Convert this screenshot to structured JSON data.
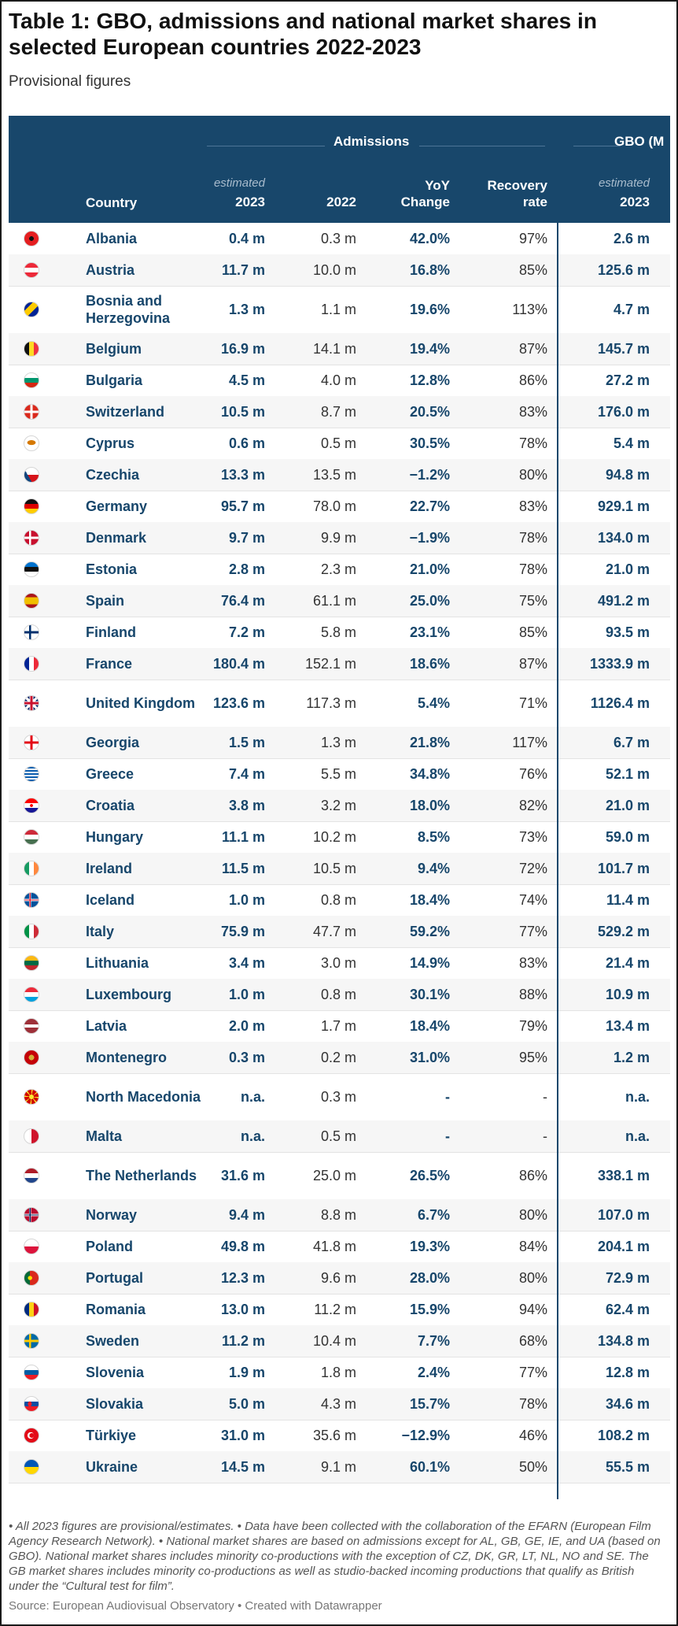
{
  "title": "Table 1: GBO, admissions and national market shares in selected European countries 2022-2023",
  "subtitle": "Provisional figures",
  "headers": {
    "group_admissions": "Admissions",
    "group_gbo": "GBO (M",
    "country": "Country",
    "estimated": "estimated",
    "col_2023": "2023",
    "col_2022": "2022",
    "yoy_line1": "YoY",
    "yoy_line2": "Change",
    "rec_line1": "Recovery",
    "rec_line2": "rate",
    "gbo_estimated": "estimated",
    "gbo_2023": "2023"
  },
  "chart_data": {
    "type": "table",
    "columns": [
      "Country",
      "Admissions estimated 2023",
      "Admissions 2022",
      "YoY Change",
      "Recovery rate",
      "GBO estimated 2023"
    ],
    "rows": [
      {
        "country": "Albania",
        "flag": "albania-flag",
        "adm2023": "0.4 m",
        "adm2022": "0.3 m",
        "yoy": "42.0%",
        "recovery": "97%",
        "gbo2023": "2.6 m"
      },
      {
        "country": "Austria",
        "flag": "austria-flag",
        "adm2023": "11.7 m",
        "adm2022": "10.0 m",
        "yoy": "16.8%",
        "recovery": "85%",
        "gbo2023": "125.6 m"
      },
      {
        "country": "Bosnia and Herzegovina",
        "flag": "bosnia-flag",
        "adm2023": "1.3 m",
        "adm2022": "1.1 m",
        "yoy": "19.6%",
        "recovery": "113%",
        "gbo2023": "4.7 m"
      },
      {
        "country": "Belgium",
        "flag": "belgium-flag",
        "adm2023": "16.9 m",
        "adm2022": "14.1 m",
        "yoy": "19.4%",
        "recovery": "87%",
        "gbo2023": "145.7 m"
      },
      {
        "country": "Bulgaria",
        "flag": "bulgaria-flag",
        "adm2023": "4.5 m",
        "adm2022": "4.0 m",
        "yoy": "12.8%",
        "recovery": "86%",
        "gbo2023": "27.2 m"
      },
      {
        "country": "Switzerland",
        "flag": "switzerland-flag",
        "adm2023": "10.5 m",
        "adm2022": "8.7 m",
        "yoy": "20.5%",
        "recovery": "83%",
        "gbo2023": "176.0 m"
      },
      {
        "country": "Cyprus",
        "flag": "cyprus-flag",
        "adm2023": "0.6 m",
        "adm2022": "0.5 m",
        "yoy": "30.5%",
        "recovery": "78%",
        "gbo2023": "5.4 m"
      },
      {
        "country": "Czechia",
        "flag": "czechia-flag",
        "adm2023": "13.3 m",
        "adm2022": "13.5 m",
        "yoy": "−1.2%",
        "recovery": "80%",
        "gbo2023": "94.8 m"
      },
      {
        "country": "Germany",
        "flag": "germany-flag",
        "adm2023": "95.7 m",
        "adm2022": "78.0 m",
        "yoy": "22.7%",
        "recovery": "83%",
        "gbo2023": "929.1 m"
      },
      {
        "country": "Denmark",
        "flag": "denmark-flag",
        "adm2023": "9.7 m",
        "adm2022": "9.9 m",
        "yoy": "−1.9%",
        "recovery": "78%",
        "gbo2023": "134.0 m"
      },
      {
        "country": "Estonia",
        "flag": "estonia-flag",
        "adm2023": "2.8 m",
        "adm2022": "2.3 m",
        "yoy": "21.0%",
        "recovery": "78%",
        "gbo2023": "21.0 m"
      },
      {
        "country": "Spain",
        "flag": "spain-flag",
        "adm2023": "76.4 m",
        "adm2022": "61.1 m",
        "yoy": "25.0%",
        "recovery": "75%",
        "gbo2023": "491.2 m"
      },
      {
        "country": "Finland",
        "flag": "finland-flag",
        "adm2023": "7.2 m",
        "adm2022": "5.8 m",
        "yoy": "23.1%",
        "recovery": "85%",
        "gbo2023": "93.5 m"
      },
      {
        "country": "France",
        "flag": "france-flag",
        "adm2023": "180.4 m",
        "adm2022": "152.1 m",
        "yoy": "18.6%",
        "recovery": "87%",
        "gbo2023": "1333.9 m"
      },
      {
        "country": "United Kingdom",
        "flag": "uk-flag",
        "adm2023": "123.6 m",
        "adm2022": "117.3 m",
        "yoy": "5.4%",
        "recovery": "71%",
        "gbo2023": "1126.4 m"
      },
      {
        "country": "Georgia",
        "flag": "georgia-flag",
        "adm2023": "1.5 m",
        "adm2022": "1.3 m",
        "yoy": "21.8%",
        "recovery": "117%",
        "gbo2023": "6.7 m"
      },
      {
        "country": "Greece",
        "flag": "greece-flag",
        "adm2023": "7.4 m",
        "adm2022": "5.5 m",
        "yoy": "34.8%",
        "recovery": "76%",
        "gbo2023": "52.1 m"
      },
      {
        "country": "Croatia",
        "flag": "croatia-flag",
        "adm2023": "3.8 m",
        "adm2022": "3.2 m",
        "yoy": "18.0%",
        "recovery": "82%",
        "gbo2023": "21.0 m"
      },
      {
        "country": "Hungary",
        "flag": "hungary-flag",
        "adm2023": "11.1 m",
        "adm2022": "10.2 m",
        "yoy": "8.5%",
        "recovery": "73%",
        "gbo2023": "59.0 m"
      },
      {
        "country": "Ireland",
        "flag": "ireland-flag",
        "adm2023": "11.5 m",
        "adm2022": "10.5 m",
        "yoy": "9.4%",
        "recovery": "72%",
        "gbo2023": "101.7 m"
      },
      {
        "country": "Iceland",
        "flag": "iceland-flag",
        "adm2023": "1.0 m",
        "adm2022": "0.8 m",
        "yoy": "18.4%",
        "recovery": "74%",
        "gbo2023": "11.4 m"
      },
      {
        "country": "Italy",
        "flag": "italy-flag",
        "adm2023": "75.9 m",
        "adm2022": "47.7 m",
        "yoy": "59.2%",
        "recovery": "77%",
        "gbo2023": "529.2 m"
      },
      {
        "country": "Lithuania",
        "flag": "lithuania-flag",
        "adm2023": "3.4 m",
        "adm2022": "3.0 m",
        "yoy": "14.9%",
        "recovery": "83%",
        "gbo2023": "21.4 m"
      },
      {
        "country": "Luxembourg",
        "flag": "luxembourg-flag",
        "adm2023": "1.0 m",
        "adm2022": "0.8 m",
        "yoy": "30.1%",
        "recovery": "88%",
        "gbo2023": "10.9 m"
      },
      {
        "country": "Latvia",
        "flag": "latvia-flag",
        "adm2023": "2.0 m",
        "adm2022": "1.7 m",
        "yoy": "18.4%",
        "recovery": "79%",
        "gbo2023": "13.4 m"
      },
      {
        "country": "Montenegro",
        "flag": "montenegro-flag",
        "adm2023": "0.3 m",
        "adm2022": "0.2 m",
        "yoy": "31.0%",
        "recovery": "95%",
        "gbo2023": "1.2 m"
      },
      {
        "country": "North Macedonia",
        "flag": "north-macedonia-flag",
        "adm2023": "n.a.",
        "adm2022": "0.3 m",
        "yoy": "-",
        "recovery": "-",
        "gbo2023": "n.a."
      },
      {
        "country": "Malta",
        "flag": "malta-flag",
        "adm2023": "n.a.",
        "adm2022": "0.5 m",
        "yoy": "-",
        "recovery": "-",
        "gbo2023": "n.a."
      },
      {
        "country": "The Netherlands",
        "flag": "netherlands-flag",
        "adm2023": "31.6 m",
        "adm2022": "25.0 m",
        "yoy": "26.5%",
        "recovery": "86%",
        "gbo2023": "338.1 m"
      },
      {
        "country": "Norway",
        "flag": "norway-flag",
        "adm2023": "9.4 m",
        "adm2022": "8.8 m",
        "yoy": "6.7%",
        "recovery": "80%",
        "gbo2023": "107.0 m"
      },
      {
        "country": "Poland",
        "flag": "poland-flag",
        "adm2023": "49.8 m",
        "adm2022": "41.8 m",
        "yoy": "19.3%",
        "recovery": "84%",
        "gbo2023": "204.1 m"
      },
      {
        "country": "Portugal",
        "flag": "portugal-flag",
        "adm2023": "12.3 m",
        "adm2022": "9.6 m",
        "yoy": "28.0%",
        "recovery": "80%",
        "gbo2023": "72.9 m"
      },
      {
        "country": "Romania",
        "flag": "romania-flag",
        "adm2023": "13.0 m",
        "adm2022": "11.2 m",
        "yoy": "15.9%",
        "recovery": "94%",
        "gbo2023": "62.4 m"
      },
      {
        "country": "Sweden",
        "flag": "sweden-flag",
        "adm2023": "11.2 m",
        "adm2022": "10.4 m",
        "yoy": "7.7%",
        "recovery": "68%",
        "gbo2023": "134.8 m"
      },
      {
        "country": "Slovenia",
        "flag": "slovenia-flag",
        "adm2023": "1.9 m",
        "adm2022": "1.8 m",
        "yoy": "2.4%",
        "recovery": "77%",
        "gbo2023": "12.8 m"
      },
      {
        "country": "Slovakia",
        "flag": "slovakia-flag",
        "adm2023": "5.0 m",
        "adm2022": "4.3 m",
        "yoy": "15.7%",
        "recovery": "78%",
        "gbo2023": "34.6 m"
      },
      {
        "country": "Türkiye",
        "flag": "turkiye-flag",
        "adm2023": "31.0 m",
        "adm2022": "35.6 m",
        "yoy": "−12.9%",
        "recovery": "46%",
        "gbo2023": "108.2 m"
      },
      {
        "country": "Ukraine",
        "flag": "ukraine-flag",
        "adm2023": "14.5 m",
        "adm2022": "9.1 m",
        "yoy": "60.1%",
        "recovery": "50%",
        "gbo2023": "55.5 m"
      }
    ]
  },
  "notes": "• All 2023 figures are provisional/estimates. • Data have been collected with the collaboration of the EFARN (European Film Agency Research Network). • National market shares are based on admissions except for AL, GB, GE, IE, and UA (based on GBO). National market shares includes minority co-productions with the exception of CZ, DK, GR, LT, NL, NO and SE. The GB market shares includes minority co-productions as well as studio-backed incoming productions that qualify as British under the “Cultural test for film”.",
  "source": "Source: European Audiovisual Observatory • Created with Datawrapper"
}
